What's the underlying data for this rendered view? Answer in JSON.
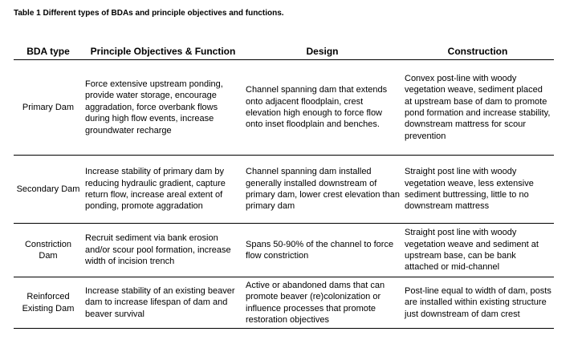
{
  "caption": "Table 1 Different types of BDAs and principle objectives and functions.",
  "headers": {
    "type": "BDA type",
    "objectives": "Principle Objectives & Function",
    "design": "Design",
    "construction": "Construction"
  },
  "rows": [
    {
      "type": "Primary Dam",
      "objectives": "Force extensive upstream ponding, provide water storage, encourage aggradation, force overbank flows during high flow events, increase groundwater recharge",
      "design": "Channel spanning dam that extends onto adjacent floodplain, crest elevation high enough to force flow onto inset floodplain and benches.",
      "construction": "Convex post-line with woody vegetation weave, sediment placed at upstream base of dam to promote pond formation and increase stability, downstream mattress for scour prevention"
    },
    {
      "type": "Secondary Dam",
      "objectives": "Increase stability of primary dam by reducing hydraulic gradient, capture return flow, increase areal extent of ponding, promote aggradation",
      "design": "Channel spanning dam installed generally installed downstream of primary dam, lower crest elevation than primary dam",
      "construction": "Straight post line with woody vegetation weave, less extensive sediment buttressing, little to no downstream mattress"
    },
    {
      "type": "Constriction Dam",
      "objectives": "Recruit sediment via bank erosion and/or scour pool formation, increase width of incision trench",
      "design": "Spans 50-90% of the channel to force flow constriction",
      "construction": "Straight post line with woody vegetation weave and sediment at upstream base, can be bank attached or mid-channel"
    },
    {
      "type": "Reinforced Existing Dam",
      "objectives": "Increase stability of an existing beaver dam to increase lifespan of dam and beaver survival",
      "design": "Active or abandoned dams that can promote beaver (re)colonization or influence processes that promote restoration objectives",
      "construction": "Post-line equal to width of dam, posts are installed within existing structure just downstream of dam crest"
    }
  ]
}
